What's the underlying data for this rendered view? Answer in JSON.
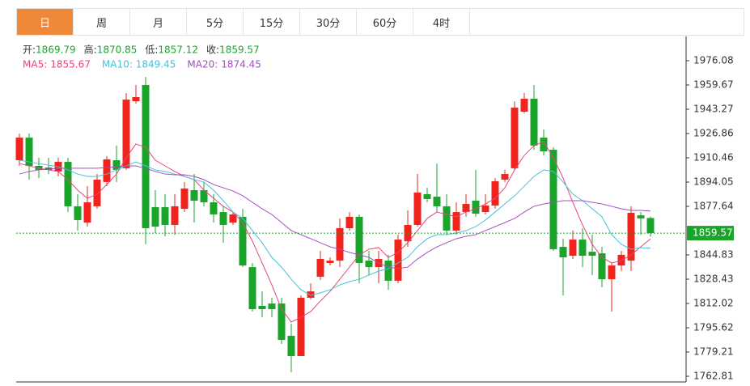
{
  "tabs": {
    "items": [
      "日",
      "周",
      "月",
      "5分",
      "15分",
      "30分",
      "60分",
      "4时"
    ],
    "active": "日"
  },
  "chart_data": {
    "type": "candlestick",
    "ohlc_labels": [
      "开:",
      "高:",
      "低:",
      "收:"
    ],
    "up_color": "#f0241c",
    "down_color": "#1aa52a",
    "open": [
      1908.8,
      1924.1,
      1905.0,
      1903.9,
      1901.2,
      1907.7,
      1877.7,
      1866.7,
      1877.7,
      1894.1,
      1908.8,
      1903.4,
      1948.7,
      1959.7,
      1877.1,
      1877.1,
      1865.1,
      1876.0,
      1888.6,
      1888.6,
      1880.4,
      1873.8,
      1866.7,
      1870.6,
      1836.6,
      1810.4,
      1812.0,
      1812.0,
      1790.2,
      1776.5,
      1815.9,
      1830.1,
      1839.4,
      1841.0,
      1862.9,
      1870.6,
      1841.0,
      1836.6,
      1841.0,
      1827.4,
      1854.1,
      1865.1,
      1885.9,
      1884.2,
      1877.7,
      1861.3,
      1873.8,
      1881.5,
      1873.8,
      1878.2,
      1895.7,
      1903.4,
      1941.6,
      1950.4,
      1924.1,
      1915.9,
      1850.3,
      1844.3,
      1855.2,
      1847.0,
      1845.9,
      1828.4,
      1837.7,
      1841.0,
      1871.6,
      1869.79
    ],
    "high": [
      1926.9,
      1926.9,
      1910.5,
      1910.5,
      1910.5,
      1910.5,
      1885.9,
      1891.3,
      1899.5,
      1911.6,
      1918.7,
      1954.2,
      1959.7,
      1965.1,
      1888.6,
      1885.9,
      1885.9,
      1894.1,
      1899.5,
      1894.1,
      1885.9,
      1877.7,
      1873.8,
      1876.0,
      1839.4,
      1820.2,
      1815.9,
      1815.9,
      1798.4,
      1817.5,
      1825.7,
      1847.6,
      1843.2,
      1869.5,
      1873.8,
      1872.2,
      1847.6,
      1847.6,
      1844.9,
      1858.5,
      1874.9,
      1899.5,
      1890.2,
      1906.6,
      1885.9,
      1880.4,
      1885.9,
      1902.3,
      1885.9,
      1896.8,
      1902.3,
      1948.7,
      1954.2,
      1959.7,
      1929.6,
      1917.6,
      1855.8,
      1861.3,
      1862.9,
      1858.5,
      1850.3,
      1839.4,
      1847.6,
      1877.7,
      1873.8,
      1870.85
    ],
    "low": [
      1905.0,
      1895.7,
      1896.8,
      1899.5,
      1897.9,
      1873.8,
      1861.3,
      1864.0,
      1876.0,
      1891.3,
      1894.1,
      1902.3,
      1947.1,
      1852.0,
      1859.6,
      1857.4,
      1858.5,
      1873.8,
      1866.7,
      1877.7,
      1866.7,
      1853.1,
      1865.1,
      1836.6,
      1806.6,
      1802.7,
      1802.7,
      1784.7,
      1765.6,
      1776.5,
      1814.8,
      1827.9,
      1837.7,
      1836.6,
      1861.3,
      1825.7,
      1831.2,
      1825.7,
      1821.3,
      1825.7,
      1850.3,
      1864.0,
      1880.4,
      1873.8,
      1858.5,
      1858.5,
      1870.6,
      1870.6,
      1872.2,
      1876.0,
      1894.1,
      1902.3,
      1940.5,
      1915.9,
      1912.1,
      1847.6,
      1817.5,
      1842.1,
      1836.6,
      1831.2,
      1823.0,
      1806.6,
      1833.9,
      1833.9,
      1858.5,
      1857.12
    ],
    "close": [
      1924.1,
      1905.0,
      1902.3,
      1902.3,
      1907.7,
      1877.7,
      1868.4,
      1880.4,
      1895.7,
      1909.4,
      1902.3,
      1949.8,
      1951.5,
      1862.9,
      1864.0,
      1865.1,
      1877.7,
      1889.7,
      1881.5,
      1880.4,
      1872.2,
      1865.1,
      1872.2,
      1837.7,
      1808.2,
      1808.2,
      1808.2,
      1787.4,
      1776.5,
      1815.9,
      1820.2,
      1842.1,
      1841.0,
      1862.9,
      1870.6,
      1839.4,
      1836.6,
      1842.1,
      1827.4,
      1855.2,
      1865.1,
      1887.0,
      1882.6,
      1877.7,
      1861.3,
      1873.8,
      1879.3,
      1872.7,
      1878.2,
      1894.6,
      1899.5,
      1944.4,
      1950.4,
      1918.7,
      1914.8,
      1848.7,
      1843.2,
      1855.2,
      1844.3,
      1844.3,
      1828.4,
      1837.7,
      1844.9,
      1873.3,
      1869.5,
      1859.57
    ],
    "series": [
      {
        "name": "MA5:",
        "color": "#e8457c",
        "values": [
          1906.6,
          1905.0,
          1903.4,
          1902.3,
          1901.2,
          1895.7,
          1888.6,
          1883.1,
          1885.9,
          1892.4,
          1899.5,
          1910.5,
          1919.8,
          1917.6,
          1908.8,
          1905.0,
          1901.2,
          1897.9,
          1895.7,
          1888.6,
          1883.1,
          1877.7,
          1873.8,
          1866.7,
          1854.1,
          1839.4,
          1824.6,
          1808.2,
          1799.5,
          1802.7,
          1806.6,
          1813.7,
          1820.2,
          1828.4,
          1836.6,
          1844.9,
          1848.7,
          1849.8,
          1843.2,
          1846.5,
          1853.1,
          1861.3,
          1869.5,
          1873.8,
          1872.2,
          1870.6,
          1873.8,
          1876.0,
          1879.3,
          1883.1,
          1890.2,
          1902.3,
          1912.1,
          1918.7,
          1921.4,
          1910.5,
          1896.8,
          1880.4,
          1865.1,
          1852.0,
          1843.2,
          1839.4,
          1841.0,
          1844.9,
          1850.3,
          1855.67
        ]
      },
      {
        "name": "MA10:",
        "color": "#45c2dc",
        "values": [
          1908.8,
          1907.7,
          1906.6,
          1905.5,
          1904.4,
          1902.3,
          1899.5,
          1897.9,
          1897.9,
          1899.5,
          1902.3,
          1905.0,
          1907.7,
          1905.0,
          1902.3,
          1901.2,
          1899.5,
          1897.9,
          1895.7,
          1894.1,
          1888.6,
          1881.5,
          1873.8,
          1869.5,
          1861.3,
          1853.1,
          1843.2,
          1836.6,
          1828.4,
          1821.3,
          1817.5,
          1819.2,
          1821.3,
          1824.6,
          1826.8,
          1828.4,
          1831.2,
          1833.9,
          1835.6,
          1839.4,
          1843.2,
          1850.3,
          1855.8,
          1858.5,
          1858.5,
          1859.6,
          1861.3,
          1864.0,
          1868.4,
          1873.8,
          1879.3,
          1884.8,
          1891.3,
          1897.9,
          1902.3,
          1901.2,
          1894.1,
          1885.9,
          1881.5,
          1876.0,
          1870.6,
          1858.5,
          1852.0,
          1848.7,
          1849.8,
          1849.45
        ]
      },
      {
        "name": "MA20:",
        "color": "#a44fc0",
        "values": [
          1899.5,
          1901.2,
          1902.3,
          1902.8,
          1903.4,
          1903.4,
          1903.4,
          1903.4,
          1903.4,
          1903.9,
          1904.4,
          1905.0,
          1905.0,
          1903.4,
          1901.2,
          1899.5,
          1899.0,
          1899.0,
          1897.9,
          1895.7,
          1892.4,
          1890.2,
          1888.0,
          1884.8,
          1880.4,
          1876.0,
          1872.2,
          1866.7,
          1861.3,
          1858.5,
          1855.8,
          1853.1,
          1850.3,
          1848.7,
          1846.5,
          1844.9,
          1843.2,
          1839.4,
          1836.6,
          1835.6,
          1836.6,
          1842.1,
          1846.5,
          1850.3,
          1853.1,
          1855.8,
          1857.4,
          1858.5,
          1861.3,
          1864.0,
          1866.7,
          1869.5,
          1873.8,
          1877.7,
          1879.3,
          1880.4,
          1881.5,
          1881.5,
          1881.5,
          1880.4,
          1879.3,
          1877.7,
          1876.0,
          1874.9,
          1874.9,
          1874.45
        ]
      }
    ],
    "ylim": [
      1759.0,
      1992.49
    ],
    "yticks": [
      1976.08,
      1959.67,
      1943.27,
      1926.86,
      1910.46,
      1894.05,
      1877.64,
      1844.83,
      1828.43,
      1812.02,
      1795.62,
      1779.21,
      1762.81
    ],
    "last_price": 1859.57,
    "last_price_color": "#1aa52a"
  }
}
